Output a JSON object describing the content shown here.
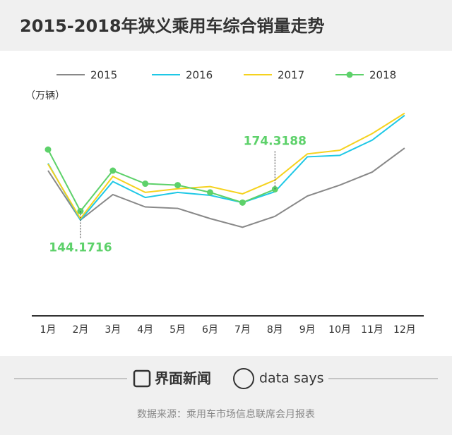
{
  "chart_data": {
    "type": "line",
    "title": "2015-2018年狭义乘用车综合销量走势",
    "y_label": "（万辆）",
    "categories": [
      "1月",
      "2月",
      "3月",
      "4月",
      "5月",
      "6月",
      "7月",
      "8月",
      "9月",
      "10月",
      "11月",
      "12月"
    ],
    "ylim": [
      0,
      300
    ],
    "series": [
      {
        "name": "2015",
        "color": "#888888",
        "markers": false,
        "values": [
          200,
          132,
          167,
          150,
          148,
          134,
          122,
          137,
          165,
          180,
          198,
          231
        ]
      },
      {
        "name": "2016",
        "color": "#1ec8e6",
        "markers": false,
        "values": [
          210,
          132,
          185,
          163,
          170,
          166,
          156,
          171,
          219,
          221,
          242,
          276
        ]
      },
      {
        "name": "2017",
        "color": "#f5d21e",
        "markers": false,
        "values": [
          209,
          134,
          192,
          170,
          175,
          178,
          168,
          187,
          223,
          228,
          251,
          279
        ]
      },
      {
        "name": "2018",
        "color": "#5dd16a",
        "markers": true,
        "values": [
          229,
          144.1716,
          200,
          182,
          180,
          170,
          156,
          174.3188,
          null,
          null,
          null,
          null
        ]
      }
    ],
    "annotated_points": [
      [
        3,
        1,
        "below"
      ],
      [
        3,
        7,
        "above"
      ]
    ],
    "brand": "界面新闻",
    "partner": "data says",
    "source": "数据来源：乘用车市场信息联席会月报表"
  }
}
